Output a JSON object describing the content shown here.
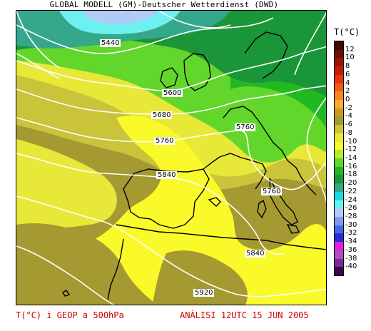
{
  "header": {
    "title": "GLOBAL MODELL (GM)-Deutscher Wetterdienst (DWD)"
  },
  "map": {
    "contour_labels": [
      "5440",
      "5600",
      "5680",
      "5760",
      "5760",
      "5840",
      "5760",
      "5840",
      "5920"
    ]
  },
  "legend": {
    "title": "T(°C)",
    "ticks": [
      "12",
      "10",
      "8",
      "6",
      "4",
      "2",
      "0",
      "-2",
      "-4",
      "-6",
      "-8",
      "-10",
      "-12",
      "-14",
      "-16",
      "-18",
      "-20",
      "-22",
      "-24",
      "-26",
      "-28",
      "-30",
      "-32",
      "-34",
      "-36",
      "-38",
      "-40"
    ],
    "colors": [
      "#3d0a05",
      "#6b0f08",
      "#9a1208",
      "#c81a0a",
      "#e8300f",
      "#f45a14",
      "#f98520",
      "#fbae30",
      "#c99a28",
      "#a59a32",
      "#c9c43a",
      "#e8e838",
      "#fafa2a",
      "#b8ea2a",
      "#62d62a",
      "#22b822",
      "#1a9638",
      "#35a78a",
      "#18dada",
      "#6ef0f0",
      "#b0ccf6",
      "#7e9cf0",
      "#4668e8",
      "#2a2ad8",
      "#e81ae0",
      "#b050c0",
      "#7c2a9a",
      "#3a0a48"
    ]
  },
  "footer": {
    "left": "T(°C) i GEOP a 500hPa",
    "right": "ANÀLISI 12UTC 15 JUN 2005"
  }
}
